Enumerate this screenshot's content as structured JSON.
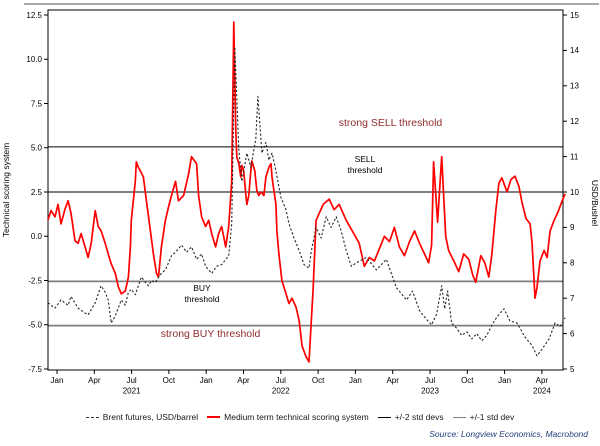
{
  "source_note": "Source: Longview Economics, Macrobond",
  "colors": {
    "score_series": "#fe0000",
    "price_series": "#262626",
    "std2_line": "#000000",
    "std1_line": "#7f7f7f",
    "strong_threshold_label": "#8f2d2d",
    "source_text": "#26407c",
    "frame": "#000000",
    "top_border": "#a9a9a9"
  },
  "chart_data": {
    "type": "line",
    "title": "",
    "x_unit": "months since Jan 2021",
    "left_axis": {
      "label": "Technical scoring system",
      "tick_labels": [
        "12.5",
        "10.0",
        "7.5",
        "5.0",
        "2.5",
        "0.0",
        "-2.5",
        "-5.0",
        "-7.5"
      ],
      "tick_values": [
        12.5,
        10,
        7.5,
        5,
        2.5,
        0,
        -2.5,
        -5,
        -7.5
      ],
      "range": [
        -7.5,
        12.5
      ]
    },
    "right_axis": {
      "label": "USD/Bushel",
      "tick_labels": [
        "15",
        "14",
        "13",
        "12",
        "11",
        "10",
        "9",
        "8",
        "7",
        "6",
        "5"
      ],
      "tick_values": [
        15,
        14,
        13,
        12,
        11,
        10,
        9,
        8,
        7,
        6,
        5
      ],
      "range": [
        5,
        15
      ]
    },
    "x_axis": {
      "tick_labels": [
        "Jan",
        "Apr",
        "Jul",
        "Oct",
        "Jan",
        "Apr",
        "Jul",
        "Oct",
        "Jan",
        "Apr",
        "Jul",
        "Oct",
        "Jan",
        "Apr"
      ],
      "year_labels": [
        {
          "label": "2021",
          "tick_index": 2
        },
        {
          "label": "2022",
          "tick_index": 6
        },
        {
          "label": "2023",
          "tick_index": 10
        },
        {
          "label": "2024",
          "tick_index": 13
        }
      ]
    },
    "threshold_lines": [
      {
        "value": 5.05,
        "color": "#000000",
        "width": 1,
        "meaning": "+2 std devs / strong SELL"
      },
      {
        "value": 2.5,
        "color": "#000000",
        "width": 1,
        "meaning": "+1 std dev / SELL"
      },
      {
        "value": -2.55,
        "color": "#7f7f7f",
        "width": 1.8,
        "meaning": "-1 std dev / BUY"
      },
      {
        "value": -5.05,
        "color": "#7f7f7f",
        "width": 1.8,
        "meaning": "-2 std devs / strong BUY"
      }
    ],
    "annotations": [
      {
        "text": "strong SELL threshold",
        "color": "#8f2d2d"
      },
      {
        "text": "SELL",
        "text2": "threshold",
        "color": "#000000"
      },
      {
        "text": "BUY",
        "text2": "threshold",
        "color": "#000000"
      },
      {
        "text": "strong BUY threshold",
        "color": "#8f2d2d"
      }
    ],
    "legend": [
      {
        "label": "Brent futures, USD/barrel",
        "swatch": "dashed-dark"
      },
      {
        "label": "Medium term technical scoring system",
        "swatch": "solid-red"
      },
      {
        "label": "+/-2 std devs",
        "swatch": "solid-black"
      },
      {
        "label": "+/-1 std dev",
        "swatch": "solid-gray"
      }
    ],
    "series": [
      {
        "name": "Medium term technical scoring system",
        "axis": "left",
        "style": "solid",
        "color": "#fe0000",
        "points": [
          [
            -0.73,
            0.9
          ],
          [
            -0.48,
            1.45
          ],
          [
            -0.16,
            1.1
          ],
          [
            0.08,
            1.8
          ],
          [
            0.32,
            0.7
          ],
          [
            0.65,
            1.55
          ],
          [
            0.89,
            2.0
          ],
          [
            1.13,
            1.3
          ],
          [
            1.45,
            -0.25
          ],
          [
            1.7,
            -0.4
          ],
          [
            1.94,
            0.15
          ],
          [
            2.26,
            -0.6
          ],
          [
            2.5,
            -1.2
          ],
          [
            2.75,
            -0.4
          ],
          [
            3.07,
            1.45
          ],
          [
            3.31,
            0.55
          ],
          [
            3.55,
            0.3
          ],
          [
            3.88,
            -0.4
          ],
          [
            4.12,
            -1.0
          ],
          [
            4.36,
            -1.55
          ],
          [
            4.69,
            -2.1
          ],
          [
            4.93,
            -2.85
          ],
          [
            5.17,
            -3.25
          ],
          [
            5.49,
            -3.1
          ],
          [
            5.74,
            -2.3
          ],
          [
            5.9,
            -0.6
          ],
          [
            5.98,
            0.9
          ],
          [
            6.14,
            2.0
          ],
          [
            6.3,
            3.1
          ],
          [
            6.38,
            4.2
          ],
          [
            6.54,
            3.9
          ],
          [
            6.7,
            3.7
          ],
          [
            6.95,
            3.35
          ],
          [
            7.19,
            2.0
          ],
          [
            7.51,
            0.3
          ],
          [
            7.75,
            -1.0
          ],
          [
            8.0,
            -2.1
          ],
          [
            8.16,
            -2.3
          ],
          [
            8.4,
            -0.6
          ],
          [
            8.72,
            0.9
          ],
          [
            8.97,
            1.65
          ],
          [
            9.21,
            2.3
          ],
          [
            9.53,
            3.1
          ],
          [
            9.77,
            2.0
          ],
          [
            10.18,
            2.3
          ],
          [
            10.58,
            3.5
          ],
          [
            10.82,
            4.5
          ],
          [
            11.23,
            4.1
          ],
          [
            11.39,
            2.3
          ],
          [
            11.63,
            1.1
          ],
          [
            11.95,
            0.55
          ],
          [
            12.2,
            0.9
          ],
          [
            12.44,
            0.15
          ],
          [
            12.76,
            -0.6
          ],
          [
            13.0,
            0.15
          ],
          [
            13.25,
            0.55
          ],
          [
            13.57,
            -0.6
          ],
          [
            13.81,
            0.55
          ],
          [
            14.05,
            3.1
          ],
          [
            14.22,
            12.1
          ],
          [
            14.38,
            5.95
          ],
          [
            14.46,
            4.5
          ],
          [
            14.62,
            4.1
          ],
          [
            14.78,
            3.35
          ],
          [
            14.86,
            4.0
          ],
          [
            15.02,
            3.7
          ],
          [
            15.19,
            2.3
          ],
          [
            15.27,
            1.8
          ],
          [
            15.43,
            2.3
          ],
          [
            15.59,
            3.7
          ],
          [
            15.67,
            4.25
          ],
          [
            15.91,
            3.7
          ],
          [
            16.08,
            2.55
          ],
          [
            16.24,
            2.3
          ],
          [
            16.4,
            2.5
          ],
          [
            16.64,
            2.3
          ],
          [
            16.8,
            3.35
          ],
          [
            17.04,
            3.9
          ],
          [
            17.21,
            4.1
          ],
          [
            17.29,
            3.35
          ],
          [
            17.61,
            1.8
          ],
          [
            17.69,
            0.3
          ],
          [
            17.85,
            -1.0
          ],
          [
            18.09,
            -2.5
          ],
          [
            18.42,
            -3.25
          ],
          [
            18.66,
            -3.8
          ],
          [
            18.9,
            -3.5
          ],
          [
            19.22,
            -4.0
          ],
          [
            19.47,
            -4.75
          ],
          [
            19.71,
            -6.2
          ],
          [
            20.03,
            -6.8
          ],
          [
            20.27,
            -7.1
          ],
          [
            20.6,
            -3.0
          ],
          [
            20.84,
            0.9
          ],
          [
            21.41,
            1.8
          ],
          [
            21.89,
            2.1
          ],
          [
            22.29,
            1.5
          ],
          [
            22.7,
            1.8
          ],
          [
            23.26,
            0.9
          ],
          [
            23.75,
            0.3
          ],
          [
            24.31,
            -0.4
          ],
          [
            24.72,
            -1.7
          ],
          [
            25.12,
            -1.2
          ],
          [
            25.53,
            -1.4
          ],
          [
            26.33,
            0.0
          ],
          [
            26.74,
            -0.3
          ],
          [
            27.14,
            0.5
          ],
          [
            27.54,
            -0.6
          ],
          [
            27.95,
            -1.1
          ],
          [
            28.35,
            -0.3
          ],
          [
            28.76,
            0.3
          ],
          [
            29.16,
            -0.4
          ],
          [
            29.56,
            -1.0
          ],
          [
            29.89,
            -1.5
          ],
          [
            30.13,
            -0.5
          ],
          [
            30.29,
            4.2
          ],
          [
            30.61,
            0.8
          ],
          [
            30.94,
            4.5
          ],
          [
            31.26,
            0.0
          ],
          [
            31.5,
            -0.8
          ],
          [
            31.99,
            -1.5
          ],
          [
            32.31,
            -2.0
          ],
          [
            32.71,
            -1.0
          ],
          [
            33.12,
            -1.3
          ],
          [
            33.44,
            -2.2
          ],
          [
            33.68,
            -2.6
          ],
          [
            34.09,
            -1.1
          ],
          [
            34.41,
            -1.5
          ],
          [
            34.73,
            -2.3
          ],
          [
            34.98,
            -1.0
          ],
          [
            35.3,
            1.5
          ],
          [
            35.54,
            3.0
          ],
          [
            35.78,
            3.3
          ],
          [
            36.19,
            2.5
          ],
          [
            36.51,
            3.2
          ],
          [
            36.83,
            3.4
          ],
          [
            37.16,
            2.8
          ],
          [
            37.4,
            1.9
          ],
          [
            37.72,
            1.0
          ],
          [
            38.05,
            0.7
          ],
          [
            38.21,
            -0.4
          ],
          [
            38.45,
            -3.5
          ],
          [
            38.61,
            -2.9
          ],
          [
            38.85,
            -1.4
          ],
          [
            39.18,
            -0.8
          ],
          [
            39.42,
            -1.2
          ],
          [
            39.66,
            0.3
          ],
          [
            39.98,
            0.9
          ],
          [
            40.31,
            1.4
          ],
          [
            40.63,
            2.0
          ],
          [
            40.87,
            2.4
          ]
        ]
      },
      {
        "name": "Brent futures, USD/barrel",
        "axis": "right",
        "style": "dashed",
        "color": "#262626",
        "points": [
          [
            -0.73,
            6.87
          ],
          [
            -0.16,
            6.72
          ],
          [
            0.32,
            6.95
          ],
          [
            0.89,
            6.8
          ],
          [
            1.13,
            7.05
          ],
          [
            1.7,
            6.72
          ],
          [
            2.26,
            6.58
          ],
          [
            2.5,
            6.53
          ],
          [
            3.07,
            6.87
          ],
          [
            3.55,
            7.35
          ],
          [
            3.88,
            7.17
          ],
          [
            4.12,
            6.95
          ],
          [
            4.36,
            6.3
          ],
          [
            4.69,
            6.5
          ],
          [
            5.17,
            6.95
          ],
          [
            5.49,
            6.8
          ],
          [
            5.74,
            7.17
          ],
          [
            5.98,
            7.25
          ],
          [
            6.3,
            7.1
          ],
          [
            6.54,
            7.35
          ],
          [
            6.79,
            7.6
          ],
          [
            7.11,
            7.45
          ],
          [
            7.35,
            7.35
          ],
          [
            7.59,
            7.5
          ],
          [
            7.92,
            7.45
          ],
          [
            8.16,
            7.6
          ],
          [
            8.4,
            7.7
          ],
          [
            8.72,
            7.8
          ],
          [
            8.97,
            8.0
          ],
          [
            9.21,
            8.2
          ],
          [
            9.53,
            8.3
          ],
          [
            10.02,
            8.5
          ],
          [
            10.42,
            8.3
          ],
          [
            10.82,
            8.45
          ],
          [
            11.23,
            8.1
          ],
          [
            11.63,
            8.25
          ],
          [
            11.95,
            7.9
          ],
          [
            12.44,
            7.7
          ],
          [
            12.84,
            7.9
          ],
          [
            13.25,
            7.95
          ],
          [
            13.81,
            8.2
          ],
          [
            14.05,
            9.1
          ],
          [
            14.3,
            14.1
          ],
          [
            14.62,
            11.2
          ],
          [
            14.86,
            10.3
          ],
          [
            15.27,
            11.1
          ],
          [
            15.59,
            10.7
          ],
          [
            15.99,
            11.5
          ],
          [
            16.16,
            12.7
          ],
          [
            16.48,
            11.1
          ],
          [
            16.8,
            11.4
          ],
          [
            17.04,
            10.9
          ],
          [
            17.29,
            11.1
          ],
          [
            17.61,
            10.6
          ],
          [
            18.01,
            9.85
          ],
          [
            18.42,
            9.5
          ],
          [
            18.66,
            9.1
          ],
          [
            19.06,
            8.7
          ],
          [
            19.47,
            8.35
          ],
          [
            19.87,
            7.95
          ],
          [
            20.27,
            7.85
          ],
          [
            20.44,
            8.3
          ],
          [
            20.84,
            9.0
          ],
          [
            21.24,
            8.7
          ],
          [
            21.65,
            9.3
          ],
          [
            22.05,
            9.0
          ],
          [
            22.46,
            9.3
          ],
          [
            22.86,
            8.9
          ],
          [
            23.26,
            8.35
          ],
          [
            23.67,
            7.9
          ],
          [
            24.07,
            8.0
          ],
          [
            24.88,
            8.15
          ],
          [
            25.69,
            7.8
          ],
          [
            26.49,
            8.1
          ],
          [
            27.3,
            7.3
          ],
          [
            28.11,
            6.95
          ],
          [
            28.59,
            7.2
          ],
          [
            29.16,
            6.65
          ],
          [
            29.73,
            6.4
          ],
          [
            30.13,
            6.25
          ],
          [
            30.53,
            6.55
          ],
          [
            30.94,
            7.35
          ],
          [
            31.18,
            6.7
          ],
          [
            31.42,
            7.2
          ],
          [
            31.74,
            6.3
          ],
          [
            32.15,
            6.15
          ],
          [
            32.55,
            5.95
          ],
          [
            32.96,
            6.05
          ],
          [
            33.36,
            5.85
          ],
          [
            33.76,
            6.0
          ],
          [
            34.17,
            5.8
          ],
          [
            34.57,
            5.95
          ],
          [
            34.98,
            6.24
          ],
          [
            35.38,
            6.47
          ],
          [
            35.95,
            6.7
          ],
          [
            36.43,
            6.36
          ],
          [
            37.0,
            6.3
          ],
          [
            37.64,
            5.9
          ],
          [
            38.21,
            5.66
          ],
          [
            38.61,
            5.37
          ],
          [
            39.01,
            5.56
          ],
          [
            39.58,
            5.85
          ],
          [
            40.06,
            6.3
          ],
          [
            40.47,
            6.2
          ],
          [
            40.87,
            6.45
          ]
        ]
      }
    ]
  }
}
